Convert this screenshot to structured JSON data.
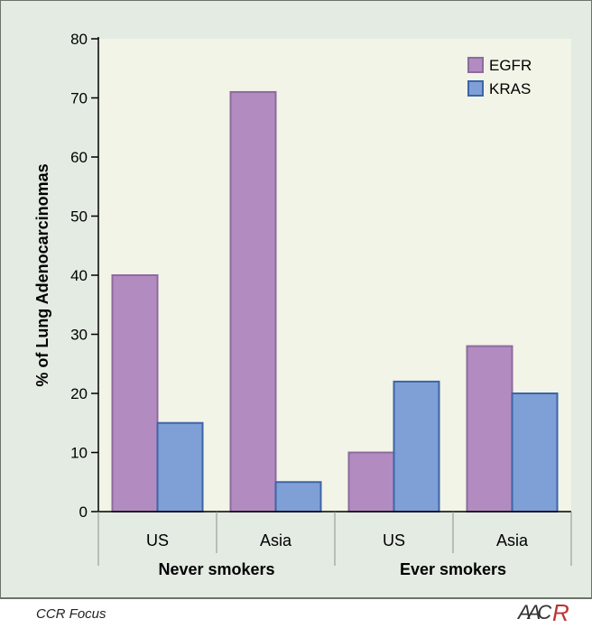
{
  "chart_data": {
    "type": "bar",
    "title": "",
    "ylabel": "% of Lung Adenocarcinomas",
    "xlabel": "",
    "ylim": [
      0,
      80
    ],
    "yticks": [
      0,
      10,
      20,
      30,
      40,
      50,
      60,
      70,
      80
    ],
    "grid": false,
    "legend_position": "top-right",
    "categories": [
      "US",
      "Asia",
      "US",
      "Asia"
    ],
    "groups": [
      {
        "label": "Never smokers",
        "categories": [
          "US",
          "Asia"
        ]
      },
      {
        "label": "Ever smokers",
        "categories": [
          "US",
          "Asia"
        ]
      }
    ],
    "series": [
      {
        "name": "EGFR",
        "color": "#b28cc0",
        "values": [
          40,
          71,
          10,
          28
        ]
      },
      {
        "name": "KRAS",
        "color": "#7ea0d6",
        "values": [
          15,
          5,
          22,
          20
        ]
      }
    ]
  },
  "footer": {
    "source": "CCR Focus",
    "logo_text": "AACR"
  },
  "colors": {
    "background": "#e3ebe3",
    "plot_area": "#f1f4e6",
    "egfr": "#b28cc0",
    "kras": "#7ea0d6"
  }
}
